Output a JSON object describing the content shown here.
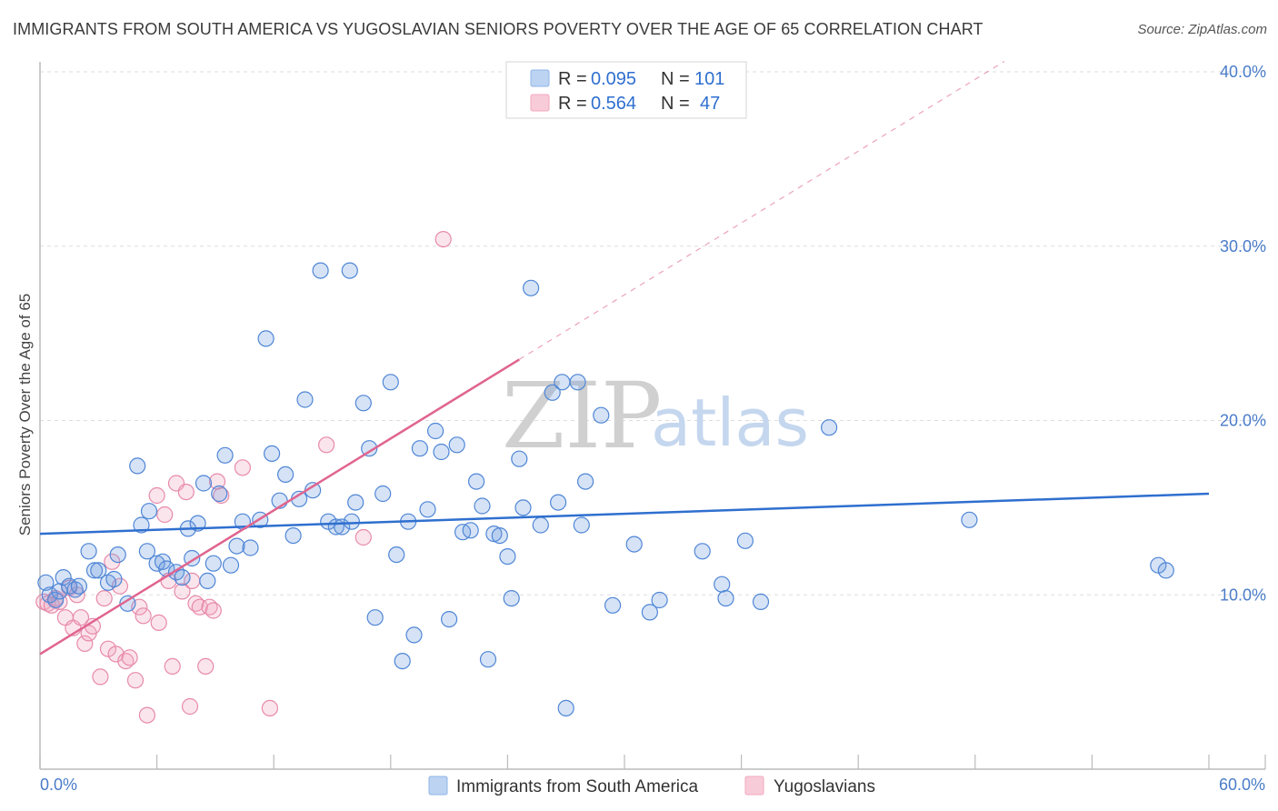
{
  "header": {
    "title": "IMMIGRANTS FROM SOUTH AMERICA VS YUGOSLAVIAN SENIORS POVERTY OVER THE AGE OF 65 CORRELATION CHART",
    "source": "Source: ZipAtlas.com"
  },
  "watermark": {
    "zip": "ZIP",
    "atlas": "atlas"
  },
  "legend": {
    "r_label": "R =",
    "n_label": "N =",
    "entries": [
      {
        "r": "0.095",
        "n": "101",
        "color": "#8fb4e8"
      },
      {
        "r": "0.564",
        "n": "47",
        "color": "#f2a8c0"
      }
    ]
  },
  "bottom_legend": {
    "items": [
      {
        "label": "Immigrants from South America"
      },
      {
        "label": "Yugoslavians"
      }
    ]
  },
  "chart_data": {
    "type": "scatter",
    "ylabel": "Seniors Poverty Over the Age of 65",
    "xlabel": "",
    "xlim": [
      0,
      60
    ],
    "ylim": [
      0,
      40
    ],
    "x_tick_labels": [
      "0.0%",
      "60.0%"
    ],
    "y_ticks": [
      10,
      20,
      30,
      40
    ],
    "y_tick_labels": [
      "10.0%",
      "20.0%",
      "30.0%",
      "40.0%"
    ],
    "grid": true,
    "series": [
      {
        "name": "Immigrants from South America",
        "color": "#6a9be0",
        "stroke": "#4f86d6",
        "trend": {
          "x0": 0,
          "y0": 13.5,
          "x1": 60,
          "y1": 15.8,
          "color": "#2f6fcf",
          "dashed_extension": false
        },
        "points": [
          [
            0.3,
            10.7
          ],
          [
            0.5,
            10.0
          ],
          [
            0.8,
            9.7
          ],
          [
            1.0,
            10.2
          ],
          [
            1.2,
            11.0
          ],
          [
            1.5,
            10.5
          ],
          [
            1.8,
            10.3
          ],
          [
            2.0,
            10.5
          ],
          [
            2.5,
            12.5
          ],
          [
            2.8,
            11.4
          ],
          [
            3.0,
            11.4
          ],
          [
            3.5,
            10.7
          ],
          [
            3.8,
            10.9
          ],
          [
            4.0,
            12.3
          ],
          [
            4.5,
            9.5
          ],
          [
            5.0,
            17.4
          ],
          [
            5.2,
            14.0
          ],
          [
            5.5,
            12.5
          ],
          [
            5.6,
            14.8
          ],
          [
            6.0,
            11.8
          ],
          [
            6.3,
            11.9
          ],
          [
            6.5,
            11.5
          ],
          [
            7.0,
            11.3
          ],
          [
            7.3,
            11.0
          ],
          [
            7.6,
            13.8
          ],
          [
            7.8,
            12.1
          ],
          [
            8.1,
            14.1
          ],
          [
            8.4,
            16.4
          ],
          [
            8.6,
            10.8
          ],
          [
            8.9,
            11.8
          ],
          [
            9.2,
            15.8
          ],
          [
            9.5,
            18.0
          ],
          [
            9.8,
            11.7
          ],
          [
            10.1,
            12.8
          ],
          [
            10.4,
            14.2
          ],
          [
            10.8,
            12.7
          ],
          [
            11.3,
            14.3
          ],
          [
            11.6,
            24.7
          ],
          [
            11.9,
            18.1
          ],
          [
            12.3,
            15.4
          ],
          [
            12.6,
            16.9
          ],
          [
            13.0,
            13.4
          ],
          [
            13.3,
            15.5
          ],
          [
            13.6,
            21.2
          ],
          [
            14.0,
            16.0
          ],
          [
            14.4,
            28.6
          ],
          [
            14.8,
            14.2
          ],
          [
            15.2,
            13.9
          ],
          [
            15.5,
            13.9
          ],
          [
            15.9,
            28.6
          ],
          [
            16.2,
            15.3
          ],
          [
            16.6,
            21.0
          ],
          [
            16.9,
            18.4
          ],
          [
            17.2,
            8.7
          ],
          [
            17.6,
            15.8
          ],
          [
            18.0,
            22.2
          ],
          [
            18.3,
            12.3
          ],
          [
            18.6,
            6.2
          ],
          [
            18.9,
            14.2
          ],
          [
            19.2,
            7.7
          ],
          [
            19.5,
            18.4
          ],
          [
            19.9,
            14.9
          ],
          [
            20.3,
            19.4
          ],
          [
            20.6,
            18.2
          ],
          [
            21.0,
            8.6
          ],
          [
            21.4,
            18.6
          ],
          [
            21.7,
            13.6
          ],
          [
            22.1,
            13.7
          ],
          [
            22.4,
            16.5
          ],
          [
            22.7,
            15.1
          ],
          [
            23.0,
            6.3
          ],
          [
            23.3,
            13.5
          ],
          [
            23.6,
            13.4
          ],
          [
            24.0,
            12.2
          ],
          [
            24.2,
            9.8
          ],
          [
            24.6,
            17.8
          ],
          [
            24.8,
            15.0
          ],
          [
            25.2,
            27.6
          ],
          [
            25.7,
            14.0
          ],
          [
            26.3,
            21.6
          ],
          [
            26.6,
            15.3
          ],
          [
            26.8,
            22.2
          ],
          [
            27.0,
            3.5
          ],
          [
            27.6,
            22.2
          ],
          [
            27.8,
            14.0
          ],
          [
            28.0,
            16.5
          ],
          [
            28.8,
            20.3
          ],
          [
            29.4,
            9.4
          ],
          [
            30.5,
            12.9
          ],
          [
            31.3,
            9.0
          ],
          [
            31.8,
            9.7
          ],
          [
            34.0,
            12.5
          ],
          [
            35.0,
            10.6
          ],
          [
            35.2,
            9.8
          ],
          [
            36.2,
            13.1
          ],
          [
            37.0,
            9.6
          ],
          [
            40.5,
            19.6
          ],
          [
            47.7,
            14.3
          ],
          [
            57.4,
            11.7
          ],
          [
            57.8,
            11.4
          ],
          [
            16.0,
            14.2
          ]
        ]
      },
      {
        "name": "Yugoslavians",
        "color": "#f2a8c0",
        "stroke": "#e78aab",
        "trend": {
          "x0": 0,
          "y0": 6.6,
          "x1": 24.6,
          "y1": 23.5,
          "x2": 49.5,
          "y2": 40.6,
          "color": "#e0648f",
          "dashed_extension": true
        },
        "points": [
          [
            0.2,
            9.6
          ],
          [
            0.4,
            9.5
          ],
          [
            0.6,
            9.4
          ],
          [
            0.8,
            9.8
          ],
          [
            1.0,
            9.6
          ],
          [
            1.3,
            8.7
          ],
          [
            1.5,
            10.4
          ],
          [
            1.7,
            8.1
          ],
          [
            1.9,
            10.0
          ],
          [
            2.1,
            8.7
          ],
          [
            2.3,
            7.2
          ],
          [
            2.5,
            7.8
          ],
          [
            2.7,
            8.2
          ],
          [
            3.1,
            5.3
          ],
          [
            3.3,
            9.8
          ],
          [
            3.5,
            6.9
          ],
          [
            3.7,
            11.9
          ],
          [
            3.9,
            6.6
          ],
          [
            4.1,
            10.5
          ],
          [
            4.4,
            6.2
          ],
          [
            4.6,
            6.4
          ],
          [
            4.9,
            5.1
          ],
          [
            5.1,
            9.3
          ],
          [
            5.3,
            8.8
          ],
          [
            5.5,
            3.1
          ],
          [
            6.0,
            15.7
          ],
          [
            6.1,
            8.4
          ],
          [
            6.4,
            14.6
          ],
          [
            6.6,
            10.8
          ],
          [
            6.8,
            5.9
          ],
          [
            7.0,
            16.4
          ],
          [
            7.3,
            10.2
          ],
          [
            7.5,
            15.9
          ],
          [
            7.7,
            3.6
          ],
          [
            7.8,
            10.8
          ],
          [
            8.0,
            9.5
          ],
          [
            8.2,
            9.3
          ],
          [
            8.5,
            5.9
          ],
          [
            8.7,
            9.3
          ],
          [
            8.9,
            9.1
          ],
          [
            9.1,
            16.5
          ],
          [
            9.3,
            15.7
          ],
          [
            10.4,
            17.3
          ],
          [
            11.8,
            3.5
          ],
          [
            14.7,
            18.6
          ],
          [
            20.7,
            30.4
          ],
          [
            16.6,
            13.3
          ]
        ]
      }
    ]
  }
}
